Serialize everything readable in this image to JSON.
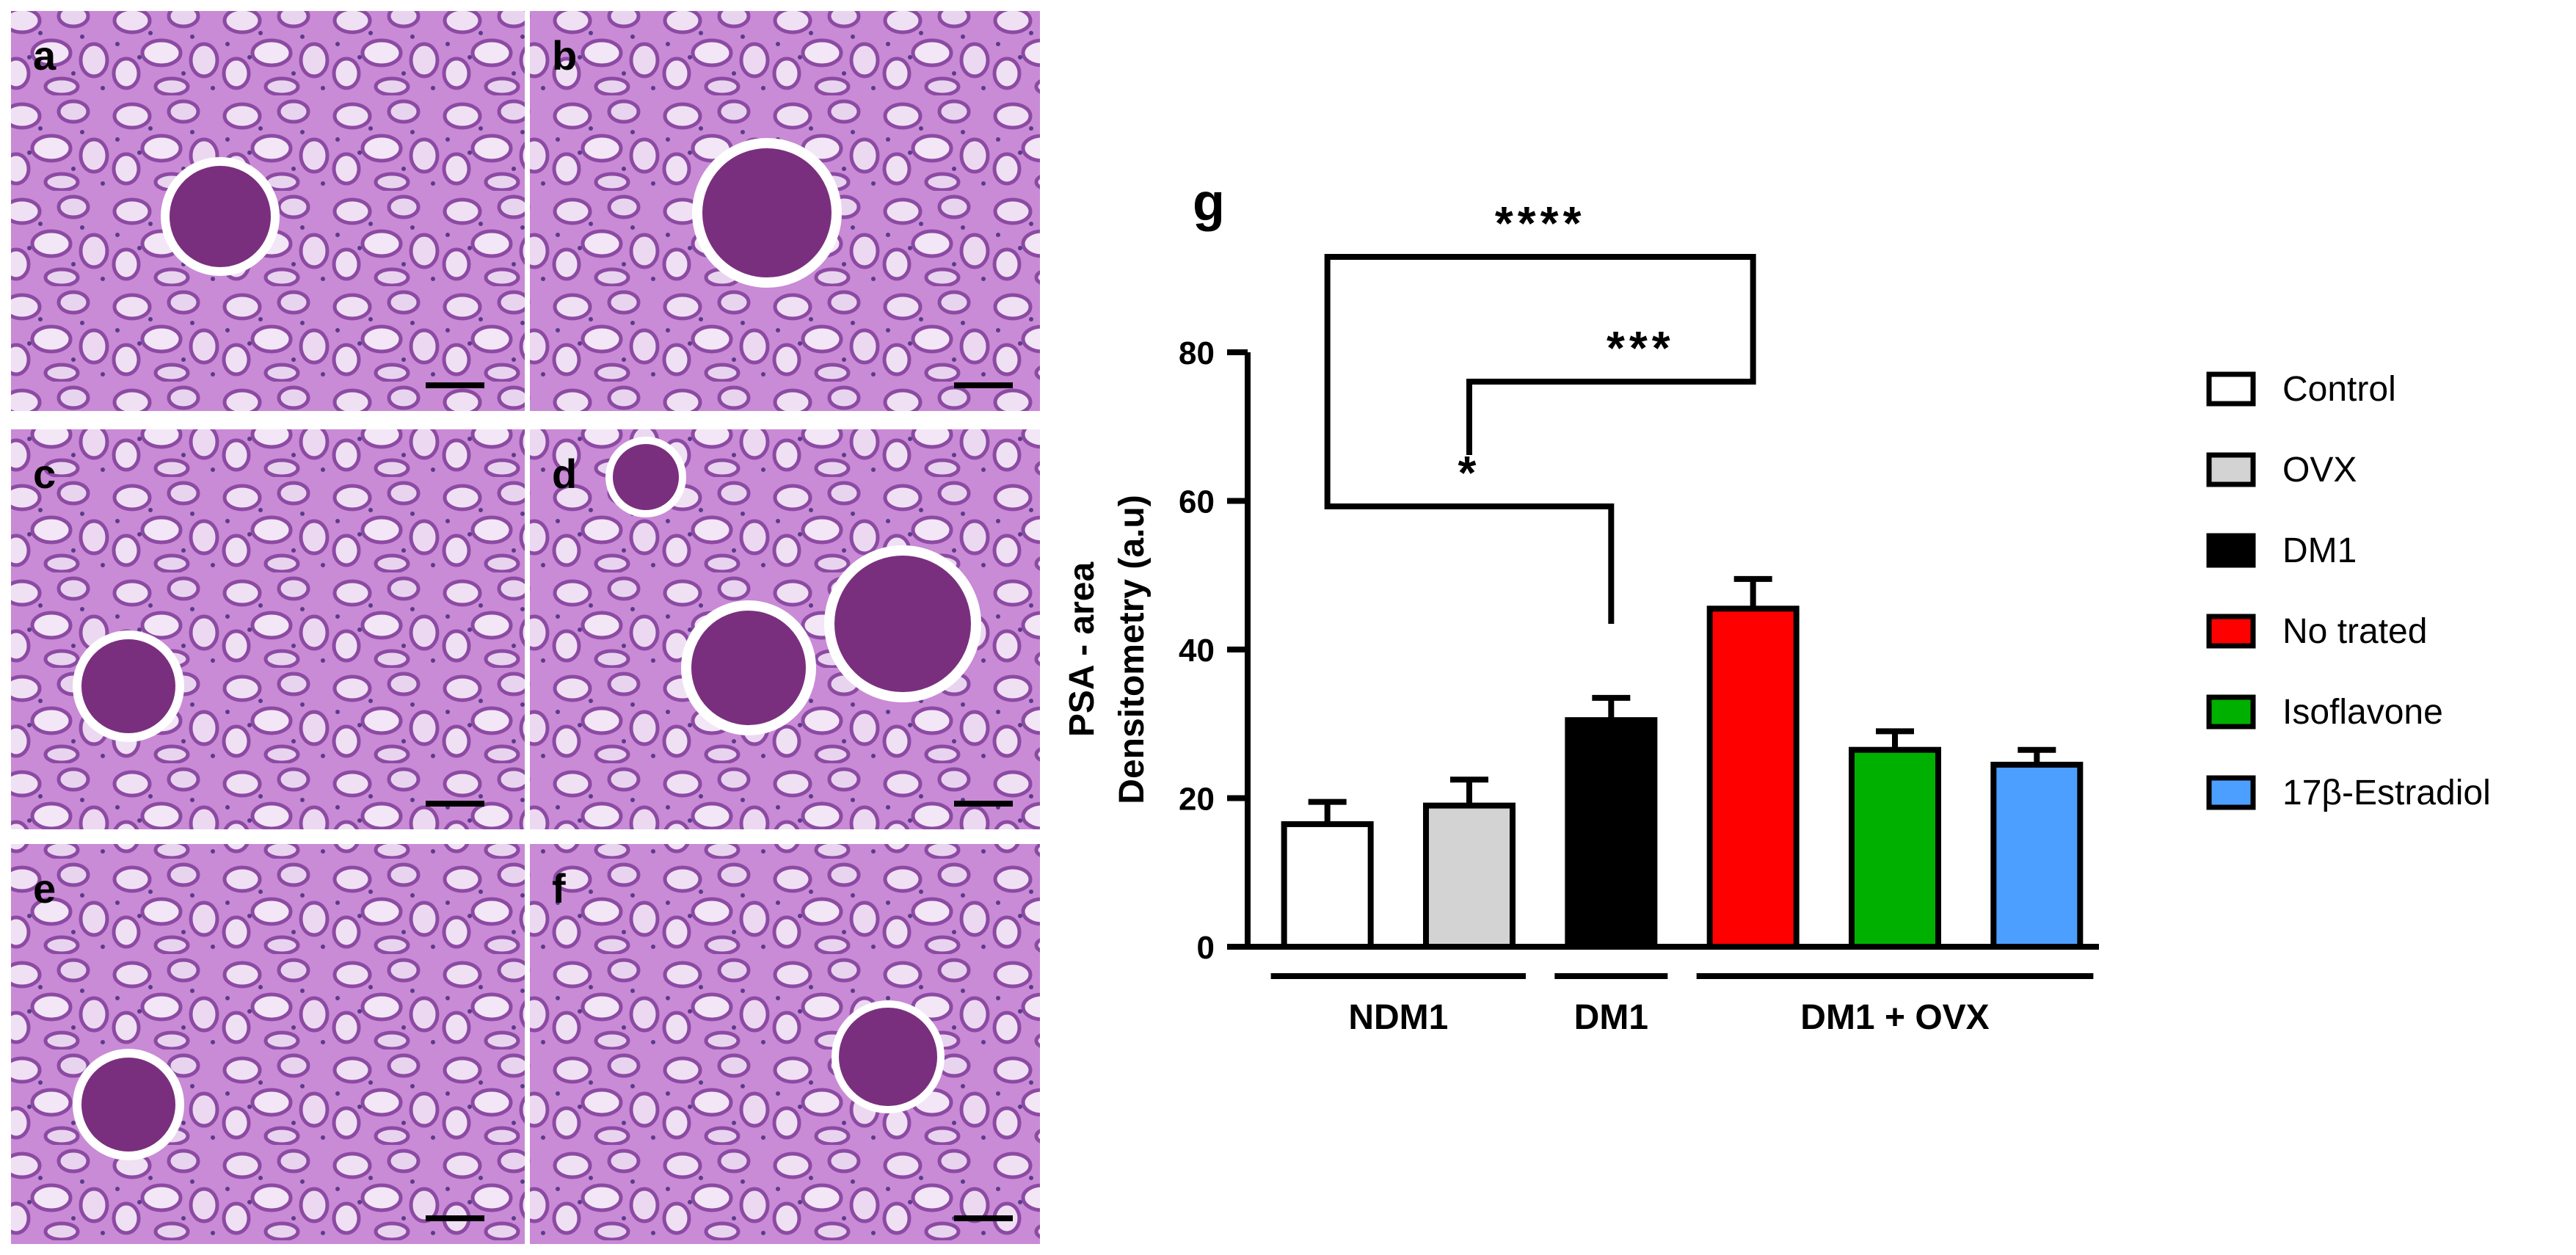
{
  "panels": [
    {
      "letter": "a"
    },
    {
      "letter": "b"
    },
    {
      "letter": "c"
    },
    {
      "letter": "d"
    },
    {
      "letter": "e"
    },
    {
      "letter": "f"
    }
  ],
  "tissue_colors": {
    "background": "#c98ad6",
    "tubule_lumen": "#f3e6f6",
    "cell_wall": "#8c4aa3",
    "glomerulus": "#7a2f7e",
    "nuclei": "#5a3b8a"
  },
  "chart_data": {
    "type": "bar",
    "panel_letter": "g",
    "categories": [
      "Control",
      "OVX",
      "DM1",
      "No trated",
      "Isoflavone",
      "17β-Estradiol"
    ],
    "values": [
      16.5,
      19,
      30.5,
      45.5,
      26.5,
      24.5
    ],
    "errors": [
      3,
      3.5,
      3,
      4,
      2.5,
      2
    ],
    "colors": [
      "#ffffff",
      "#d3d3d3",
      "#000000",
      "#ff0000",
      "#00b000",
      "#4d9fff"
    ],
    "ylabel_lines": [
      "PSA - area",
      "Densitometry (a.u)"
    ],
    "xlabel": "",
    "ylim": [
      0,
      80
    ],
    "yticks": [
      0,
      20,
      40,
      60,
      80
    ],
    "grid": false,
    "legend_position": "right",
    "groups": [
      {
        "label": "NDM1",
        "members": [
          0,
          1
        ]
      },
      {
        "label": "DM1",
        "members": [
          2
        ]
      },
      {
        "label": "DM1 + OVX",
        "members": [
          3,
          4,
          5
        ]
      }
    ],
    "significance": [
      {
        "from": 0,
        "to": 3,
        "label": "****"
      },
      {
        "from": 1,
        "to": 3,
        "label": "***"
      },
      {
        "from": 0,
        "to": 2,
        "label": "*"
      }
    ]
  }
}
